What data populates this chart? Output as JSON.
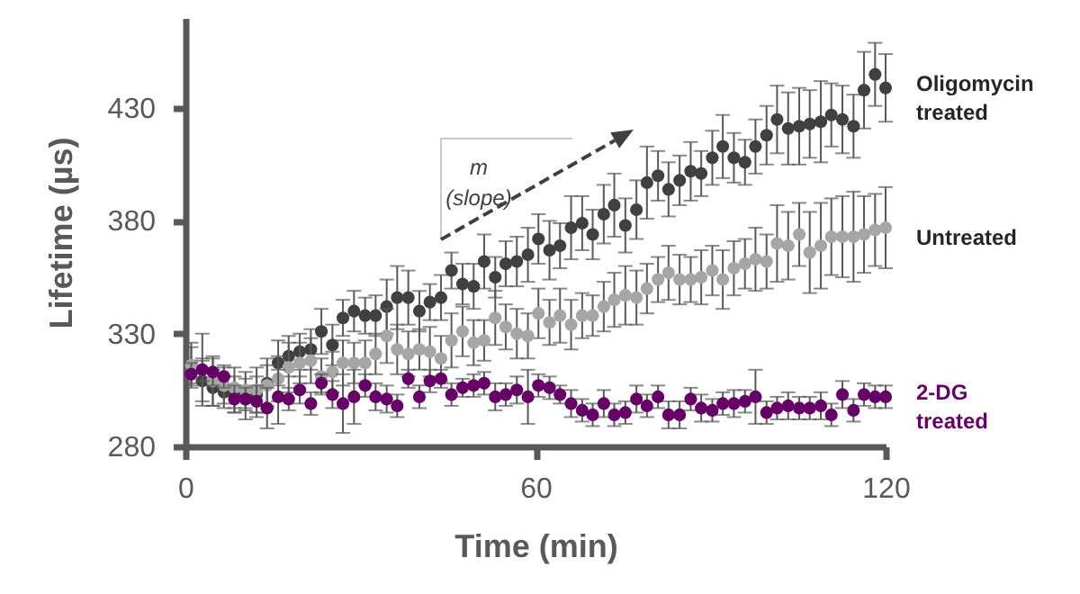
{
  "chart_data": {
    "type": "scatter",
    "xlabel": "Time (min)",
    "ylabel": "Lifetime (µs)",
    "x": [
      1.0,
      2.9,
      4.7,
      6.6,
      8.4,
      10.3,
      12.2,
      14.0,
      15.9,
      17.7,
      19.6,
      21.5,
      23.3,
      25.2,
      27.0,
      28.9,
      30.8,
      32.6,
      34.5,
      36.3,
      38.2,
      40.1,
      41.9,
      43.8,
      45.6,
      47.5,
      49.4,
      51.2,
      53.1,
      54.9,
      56.8,
      58.7,
      60.5,
      62.4,
      64.2,
      66.1,
      68.0,
      69.8,
      71.7,
      73.5,
      75.4,
      77.3,
      79.1,
      81.0,
      82.8,
      84.7,
      86.6,
      88.4,
      90.3,
      92.1,
      94.0,
      95.9,
      97.7,
      99.6,
      101.4,
      103.3,
      105.2,
      107.0,
      108.9,
      110.7,
      112.6,
      114.5,
      116.3,
      118.2,
      120.0
    ],
    "xlim": [
      0,
      120
    ],
    "xticks": [
      0,
      60,
      120
    ],
    "ylim": [
      280,
      470
    ],
    "yticks": [
      280,
      330,
      380,
      430
    ],
    "marker": "circle",
    "annotations": [
      "m (slope)"
    ],
    "series": [
      {
        "name": "Oligomycin treated",
        "color": "#404040",
        "values": [
          316,
          309,
          306,
          304,
          303,
          301,
          303,
          308,
          317,
          320,
          322,
          323,
          331,
          325,
          337,
          340,
          338,
          338,
          342,
          346,
          346,
          340,
          344,
          346,
          358,
          352,
          351,
          362,
          355,
          361,
          362,
          365,
          372,
          367,
          369,
          377,
          379,
          374,
          383,
          387,
          378,
          385,
          397,
          400,
          394,
          398,
          402,
          401,
          408,
          413,
          408,
          406,
          413,
          418,
          425,
          421,
          422,
          423,
          424,
          427,
          425,
          422,
          438,
          445,
          439
        ],
        "errors": [
          8,
          9,
          8,
          7,
          8,
          9,
          8,
          11,
          10,
          9,
          8,
          9,
          10,
          9,
          8,
          9,
          8,
          9,
          12,
          14,
          12,
          9,
          8,
          10,
          8,
          9,
          10,
          12,
          9,
          10,
          11,
          12,
          11,
          13,
          10,
          14,
          12,
          11,
          13,
          14,
          12,
          13,
          16,
          11,
          12,
          11,
          13,
          10,
          12,
          14,
          11,
          10,
          12,
          13,
          15,
          16,
          17,
          15,
          18,
          14,
          15,
          14,
          17,
          14,
          15
        ]
      },
      {
        "name": "Untreated",
        "color": "#a6a6a6",
        "values": [
          316,
          314,
          309,
          307,
          306,
          305,
          305,
          307,
          310,
          315,
          317,
          318,
          311,
          313,
          317,
          317,
          317,
          321,
          329,
          323,
          321,
          323,
          322,
          319,
          327,
          331,
          326,
          327,
          337,
          333,
          330,
          329,
          339,
          335,
          338,
          334,
          338,
          338,
          342,
          345,
          347,
          346,
          350,
          354,
          357,
          354,
          354,
          355,
          358,
          354,
          359,
          361,
          363,
          362,
          370,
          369,
          374,
          366,
          369,
          373,
          373,
          373,
          374,
          376,
          377
        ],
        "errors": [
          10,
          16,
          11,
          8,
          9,
          8,
          10,
          9,
          10,
          11,
          9,
          10,
          8,
          9,
          10,
          9,
          10,
          9,
          12,
          11,
          10,
          9,
          11,
          10,
          12,
          11,
          10,
          9,
          12,
          10,
          11,
          10,
          11,
          10,
          12,
          11,
          10,
          9,
          11,
          12,
          13,
          12,
          11,
          10,
          12,
          11,
          10,
          12,
          11,
          13,
          12,
          11,
          14,
          12,
          17,
          15,
          14,
          18,
          19,
          17,
          18,
          20,
          17,
          16,
          18
        ]
      },
      {
        "name": "2-DG treated",
        "color": "#660066",
        "values": [
          312,
          314,
          313,
          311,
          301,
          301,
          300,
          297,
          302,
          301,
          305,
          299,
          308,
          303,
          299,
          302,
          307,
          302,
          301,
          298,
          310,
          302,
          309,
          310,
          303,
          306,
          307,
          308,
          302,
          303,
          305,
          302,
          307,
          306,
          303,
          299,
          296,
          294,
          299,
          294,
          295,
          301,
          298,
          302,
          294,
          294,
          301,
          297,
          296,
          299,
          299,
          300,
          302,
          295,
          297,
          298,
          297,
          297,
          298,
          294,
          303,
          296,
          303,
          302,
          302
        ],
        "errors": [
          5,
          5,
          6,
          5,
          6,
          5,
          7,
          9,
          12,
          5,
          6,
          5,
          4,
          6,
          13,
          12,
          5,
          6,
          6,
          5,
          4,
          5,
          5,
          4,
          5,
          4,
          5,
          5,
          6,
          5,
          6,
          12,
          5,
          5,
          4,
          6,
          5,
          5,
          6,
          5,
          5,
          6,
          5,
          5,
          6,
          6,
          5,
          6,
          5,
          5,
          6,
          5,
          12,
          5,
          5,
          6,
          5,
          5,
          6,
          5,
          6,
          5,
          5,
          5,
          5
        ]
      }
    ]
  }
}
